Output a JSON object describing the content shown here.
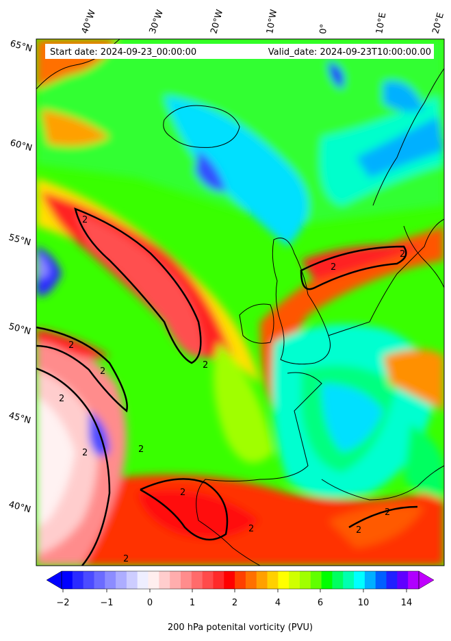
{
  "header": {
    "start_date": "Start date: 2024-09-23_00:00:00",
    "valid_date": "Valid_date: 2024-09-23T10:00:00.00"
  },
  "axes": {
    "lon_labels": [
      "40°W",
      "30°W",
      "20°W",
      "10°W",
      "0°",
      "10°E",
      "20°E"
    ],
    "lat_labels": [
      "65°N",
      "60°N",
      "55°N",
      "50°N",
      "45°N",
      "40°N"
    ]
  },
  "contour_label": "2",
  "colorbar": {
    "title": "200 hPa potenital vorticity (PVU)",
    "ticks": [
      "−2",
      "−1",
      "0",
      "1",
      "2",
      "4",
      "6",
      "10",
      "14"
    ],
    "colors": [
      "#0000ff",
      "#2a2aff",
      "#4b4bff",
      "#6b6bff",
      "#8c8cff",
      "#adadff",
      "#cdcdff",
      "#eeeeff",
      "#ffeeee",
      "#ffcdcd",
      "#ffadad",
      "#ff8c8c",
      "#ff6b6b",
      "#ff4b4b",
      "#ff2a2a",
      "#ff0000",
      "#ff4000",
      "#ff7000",
      "#ffa000",
      "#ffd000",
      "#ffff00",
      "#d0ff00",
      "#a0ff00",
      "#60ff00",
      "#00ff00",
      "#00ff60",
      "#00ffb0",
      "#00ffff",
      "#00b0ff",
      "#0060ff",
      "#2020ff",
      "#6000ff",
      "#b000ff"
    ],
    "extend_low_color": "#0000ff",
    "extend_high_color": "#c000ff"
  }
}
